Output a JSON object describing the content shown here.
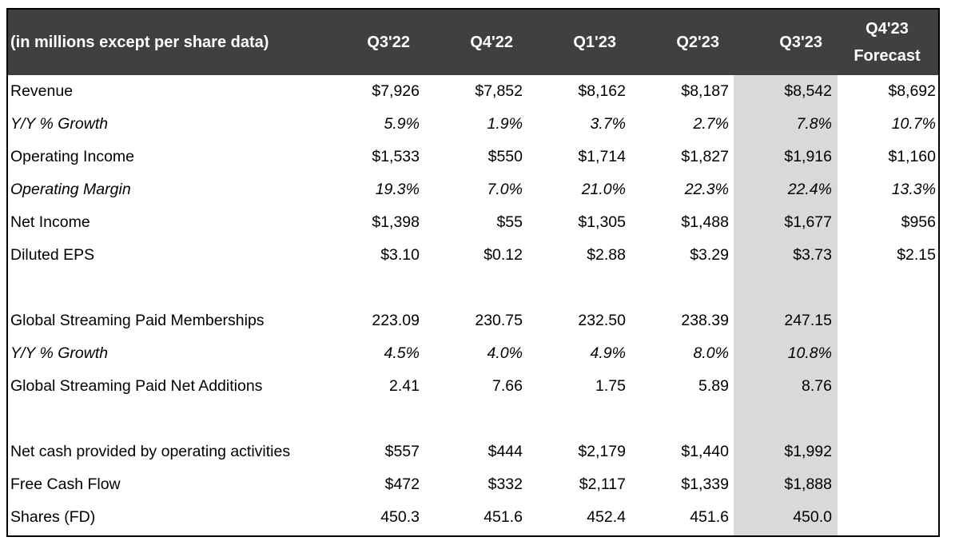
{
  "header": {
    "label": "(in millions except per share data)",
    "quarters": [
      "Q3'22",
      "Q4'22",
      "Q1'23",
      "Q2'23",
      "Q3'23"
    ],
    "forecast_line1": "Q4'23",
    "forecast_line2": "Forecast"
  },
  "colors": {
    "header_bg": "#404040",
    "header_text": "#ffffff",
    "highlight_column": "#d9d9d9"
  },
  "rows": [
    {
      "label": "Revenue",
      "values": [
        "$7,926",
        "$7,852",
        "$8,162",
        "$8,187",
        "$8,542"
      ],
      "forecast": "$8,692"
    },
    {
      "label": "Y/Y % Growth",
      "values": [
        "5.9%",
        "1.9%",
        "3.7%",
        "2.7%",
        "7.8%"
      ],
      "forecast": "10.7%"
    },
    {
      "label": "Operating Income",
      "values": [
        "$1,533",
        "$550",
        "$1,714",
        "$1,827",
        "$1,916"
      ],
      "forecast": "$1,160"
    },
    {
      "label": "Operating Margin",
      "values": [
        "19.3%",
        "7.0%",
        "21.0%",
        "22.3%",
        "22.4%"
      ],
      "forecast": "13.3%"
    },
    {
      "label": "Net Income",
      "values": [
        "$1,398",
        "$55",
        "$1,305",
        "$1,488",
        "$1,677"
      ],
      "forecast": "$956"
    },
    {
      "label": "Diluted EPS",
      "values": [
        "$3.10",
        "$0.12",
        "$2.88",
        "$3.29",
        "$3.73"
      ],
      "forecast": "$2.15"
    },
    {
      "label": "Global Streaming Paid Memberships",
      "values": [
        "223.09",
        "230.75",
        "232.50",
        "238.39",
        "247.15"
      ],
      "forecast": ""
    },
    {
      "label": "Y/Y % Growth",
      "values": [
        "4.5%",
        "4.0%",
        "4.9%",
        "8.0%",
        "10.8%"
      ],
      "forecast": ""
    },
    {
      "label": "Global Streaming Paid Net Additions",
      "values": [
        "2.41",
        "7.66",
        "1.75",
        "5.89",
        "8.76"
      ],
      "forecast": ""
    },
    {
      "label": "Net cash provided by operating activities",
      "values": [
        "$557",
        "$444",
        "$2,179",
        "$1,440",
        "$1,992"
      ],
      "forecast": ""
    },
    {
      "label": "Free Cash Flow",
      "values": [
        "$472",
        "$332",
        "$2,117",
        "$1,339",
        "$1,888"
      ],
      "forecast": ""
    },
    {
      "label": "Shares (FD)",
      "values": [
        "450.3",
        "451.6",
        "452.4",
        "451.6",
        "450.0"
      ],
      "forecast": ""
    }
  ]
}
